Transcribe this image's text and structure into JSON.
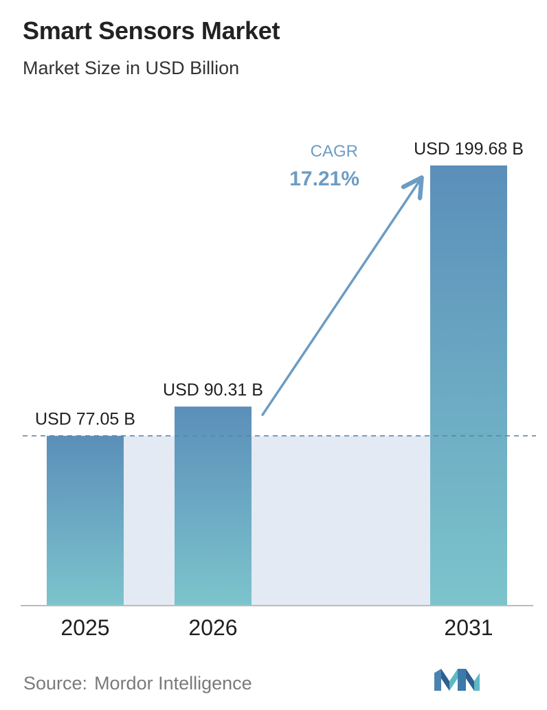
{
  "header": {
    "title": "Smart Sensors Market",
    "subtitle": "Market Size in USD Billion"
  },
  "cagr": {
    "label": "CAGR",
    "value": "17.21%"
  },
  "footer": {
    "source_label": "Source:",
    "source_name": "Mordor Intelligence"
  },
  "colors": {
    "bar_top": "#5b8fba",
    "bar_bottom": "#7cc4cc",
    "shade": "#e3eaf3",
    "cagr": "#6c9cc4",
    "dashed_line": "#5a84aa",
    "axis": "#bbbbbb"
  },
  "chart_data": {
    "type": "bar",
    "title": "Smart Sensors Market",
    "subtitle": "Market Size in USD Billion",
    "categories": [
      "2025",
      "2026",
      "2031"
    ],
    "values": [
      77.05,
      90.31,
      199.68
    ],
    "value_labels": [
      "USD 77.05 B",
      "USD 90.31 B",
      "USD 199.68 B"
    ],
    "ylabel": "Market Size in USD Billion",
    "ylim": [
      0,
      199.68
    ],
    "grid": false,
    "annotation": "CAGR 17.21%"
  }
}
